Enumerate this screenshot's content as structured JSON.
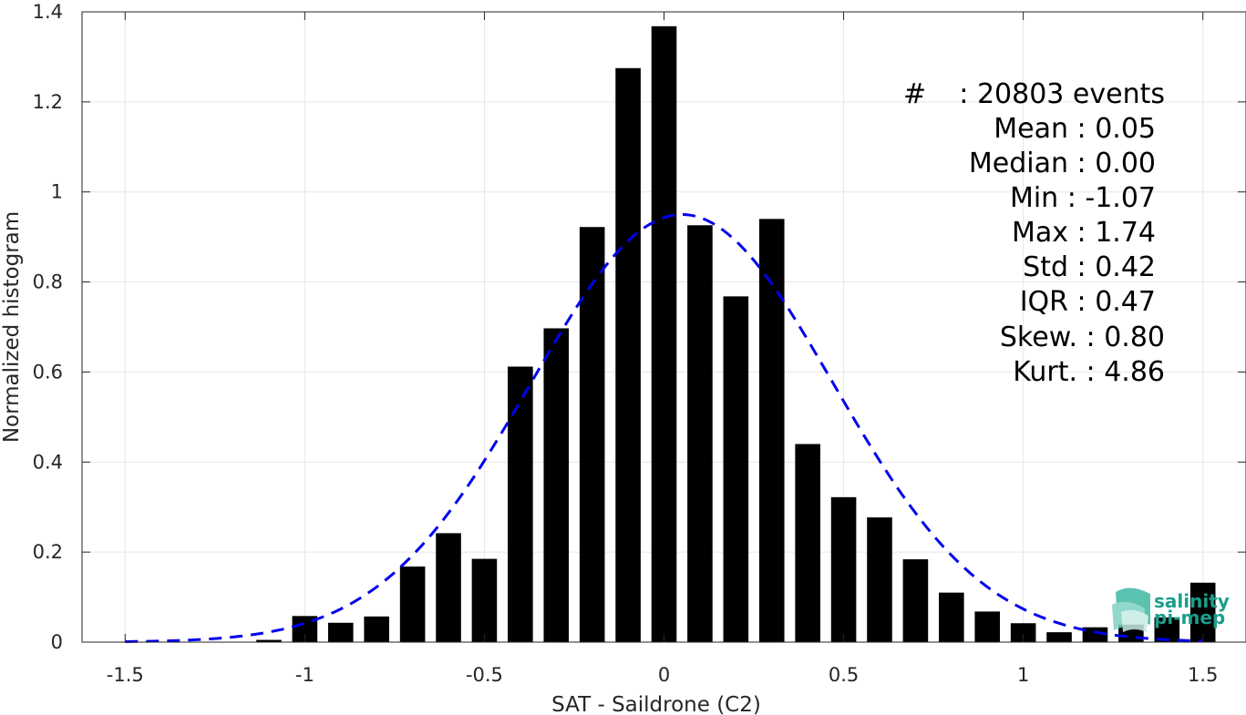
{
  "chart_data": {
    "type": "bar",
    "xlabel": "SAT - Saildrone (C2)",
    "ylabel": "Normalized histogram",
    "xlim": [
      -1.62,
      1.62
    ],
    "ylim": [
      0,
      1.4
    ],
    "xticks": [
      -1.5,
      -1,
      -0.5,
      0,
      0.5,
      1,
      1.5
    ],
    "xtick_labels": [
      "-1.5",
      "-1",
      "-0.5",
      "0",
      "0.5",
      "1",
      "1.5"
    ],
    "yticks": [
      0,
      0.2,
      0.4,
      0.6,
      0.8,
      1,
      1.2,
      1.4
    ],
    "ytick_labels": [
      "0",
      "0.2",
      "0.4",
      "0.6",
      "0.8",
      "1",
      "1.2",
      "1.4"
    ],
    "grid": true,
    "bar_width": 0.07,
    "bars": {
      "x": [
        -1.1,
        -1.0,
        -0.9,
        -0.8,
        -0.7,
        -0.6,
        -0.5,
        -0.4,
        -0.3,
        -0.2,
        -0.1,
        0.0,
        0.1,
        0.2,
        0.3,
        0.4,
        0.5,
        0.6,
        0.7,
        0.8,
        0.9,
        1.0,
        1.1,
        1.2,
        1.3,
        1.4,
        1.5
      ],
      "values": [
        0.005,
        0.058,
        0.043,
        0.057,
        0.168,
        0.242,
        0.185,
        0.612,
        0.697,
        0.922,
        1.275,
        1.368,
        0.926,
        0.768,
        0.94,
        0.44,
        0.322,
        0.277,
        0.184,
        0.11,
        0.068,
        0.042,
        0.022,
        0.033,
        0.039,
        0.055,
        0.132
      ],
      "color": "#000000"
    },
    "fit": {
      "type": "normal-fit",
      "style": "dashed",
      "color": "#0000ee",
      "mean": 0.05,
      "std": 0.42,
      "x_range": [
        -1.5,
        1.5
      ]
    },
    "annotations": {
      "hash": "#",
      "events": ": 20803 events",
      "lines": [
        "Mean : 0.05",
        "Median : 0.00",
        "Min : -1.07",
        "Max : 1.74",
        "Std : 0.42",
        "IQR : 0.47",
        "Skew. : 0.80",
        "Kurt. : 4.86"
      ]
    }
  },
  "logo": {
    "line1": "salinity",
    "line2": "pi-mep",
    "color": "#1a9f8c"
  }
}
